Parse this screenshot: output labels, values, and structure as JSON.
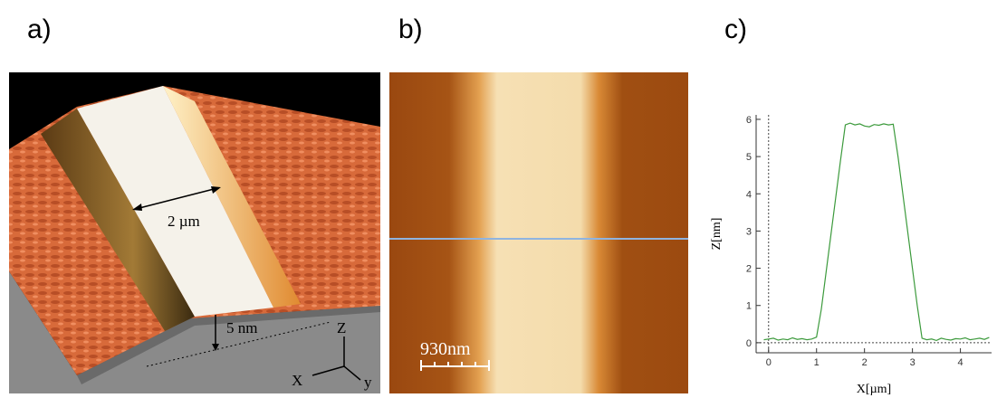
{
  "panels": {
    "a": {
      "label": "a)",
      "width_label": "2 µm",
      "height_label": "5 nm",
      "axis_z": "Z",
      "axis_x": "X",
      "axis_y": "y"
    },
    "b": {
      "label": "b)",
      "scale_bar": "930nm"
    },
    "c": {
      "label": "c)"
    }
  },
  "chart_data": {
    "type": "line",
    "xlabel": "X[µm]",
    "ylabel": "Z[nm]",
    "x": [
      -0.1,
      0,
      0.1,
      0.2,
      0.3,
      0.4,
      0.5,
      0.6,
      0.7,
      0.8,
      0.9,
      1.0,
      1.1,
      1.2,
      1.3,
      1.4,
      1.5,
      1.6,
      1.7,
      1.8,
      1.9,
      2.0,
      2.1,
      2.2,
      2.3,
      2.4,
      2.5,
      2.6,
      2.7,
      2.8,
      2.9,
      3.0,
      3.1,
      3.2,
      3.3,
      3.4,
      3.5,
      3.6,
      3.7,
      3.8,
      3.9,
      4.0,
      4.1,
      4.2,
      4.3,
      4.4,
      4.5,
      4.6
    ],
    "series": [
      {
        "color": "#3c9a3c",
        "values": [
          0.08,
          0.1,
          0.12,
          0.07,
          0.1,
          0.08,
          0.13,
          0.09,
          0.11,
          0.08,
          0.1,
          0.15,
          0.9,
          1.9,
          2.9,
          3.9,
          4.9,
          5.85,
          5.9,
          5.85,
          5.88,
          5.82,
          5.8,
          5.86,
          5.84,
          5.88,
          5.85,
          5.87,
          5.0,
          4.0,
          3.0,
          2.0,
          1.0,
          0.12,
          0.08,
          0.1,
          0.06,
          0.12,
          0.09,
          0.07,
          0.11,
          0.1,
          0.13,
          0.08,
          0.1,
          0.12,
          0.09,
          0.14
        ]
      }
    ],
    "xlim": [
      -0.26,
      4.65
    ],
    "ylim": [
      -0.27,
      6.12
    ],
    "xticks": [
      0,
      1,
      2,
      3,
      4
    ],
    "yticks": [
      0,
      1,
      2,
      3,
      4,
      5,
      6
    ]
  }
}
